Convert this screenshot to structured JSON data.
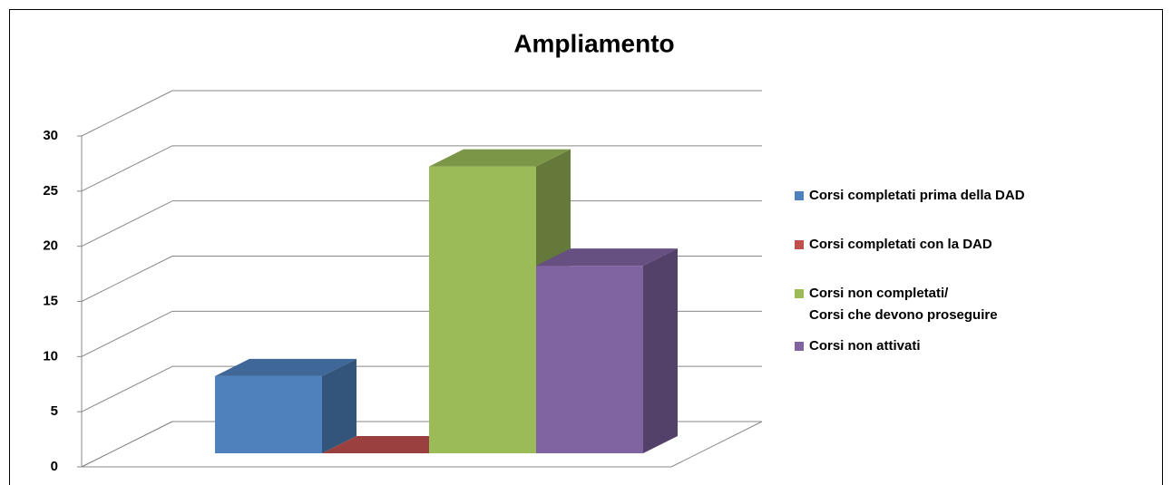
{
  "chart_data": {
    "type": "bar3d",
    "title": "Ampliamento",
    "series": [
      {
        "name": "Corsi completati prima della DAD",
        "color": "#4f81bd",
        "values": [
          7
        ]
      },
      {
        "name": "Corsi completati con la DAD",
        "color": "#c0504d",
        "values": [
          0
        ]
      },
      {
        "name": "Corsi non completati/\nCorsi che devono proseguire",
        "color": "#9bbb59",
        "values": [
          26
        ]
      },
      {
        "name": "Corsi non attivati",
        "color": "#8064a2",
        "values": [
          17
        ]
      }
    ],
    "ylim": [
      0,
      30
    ],
    "yticks": [
      0,
      5,
      10,
      15,
      20,
      25,
      30
    ],
    "grid": true,
    "legend": "right"
  }
}
